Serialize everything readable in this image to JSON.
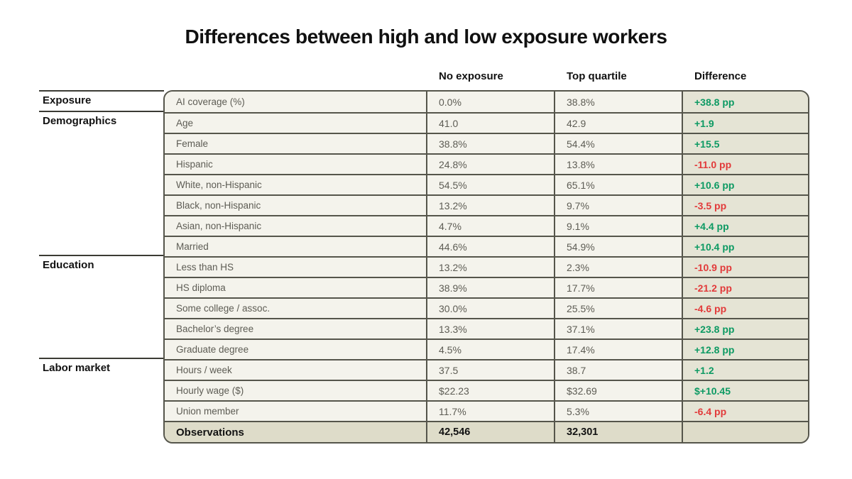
{
  "title": "Differences between high and low exposure workers",
  "columns": {
    "no_exposure": "No exposure",
    "top_quartile": "Top quartile",
    "difference": "Difference"
  },
  "colors": {
    "positive": "#0d9a63",
    "negative": "#e23a3a",
    "cell_background": "#f4f3ec",
    "difference_background": "#e5e4d5",
    "totals_background": "#dedcc9",
    "border": "#55554b"
  },
  "chart_data": {
    "type": "table",
    "title": "Differences between high and low exposure workers",
    "column_headers": [
      "No exposure",
      "Top quartile",
      "Difference"
    ],
    "groups": [
      {
        "label": "Exposure",
        "row_count": 1
      },
      {
        "label": "Demographics",
        "row_count": 7
      },
      {
        "label": "Education",
        "row_count": 5
      },
      {
        "label": "Labor market",
        "row_count": 4
      }
    ],
    "rows": [
      {
        "group": "Exposure",
        "label": "AI coverage (%)",
        "no_exposure": "0.0%",
        "top_quartile": "38.8%",
        "difference": "+38.8 pp",
        "trend": "positive",
        "is_total": false
      },
      {
        "group": "Demographics",
        "label": "Age",
        "no_exposure": "41.0",
        "top_quartile": "42.9",
        "difference": "+1.9",
        "trend": "positive",
        "is_total": false
      },
      {
        "group": "Demographics",
        "label": "Female",
        "no_exposure": "38.8%",
        "top_quartile": "54.4%",
        "difference": "+15.5",
        "trend": "positive",
        "is_total": false
      },
      {
        "group": "Demographics",
        "label": "Hispanic",
        "no_exposure": "24.8%",
        "top_quartile": "13.8%",
        "difference": "-11.0 pp",
        "trend": "negative",
        "is_total": false
      },
      {
        "group": "Demographics",
        "label": "White, non-Hispanic",
        "no_exposure": "54.5%",
        "top_quartile": "65.1%",
        "difference": "+10.6 pp",
        "trend": "positive",
        "is_total": false
      },
      {
        "group": "Demographics",
        "label": "Black, non-Hispanic",
        "no_exposure": "13.2%",
        "top_quartile": "9.7%",
        "difference": "-3.5 pp",
        "trend": "negative",
        "is_total": false
      },
      {
        "group": "Demographics",
        "label": "Asian, non-Hispanic",
        "no_exposure": "4.7%",
        "top_quartile": "9.1%",
        "difference": "+4.4 pp",
        "trend": "positive",
        "is_total": false
      },
      {
        "group": "Demographics",
        "label": "Married",
        "no_exposure": "44.6%",
        "top_quartile": "54.9%",
        "difference": "+10.4 pp",
        "trend": "positive",
        "is_total": false
      },
      {
        "group": "Education",
        "label": "Less than HS",
        "no_exposure": "13.2%",
        "top_quartile": "2.3%",
        "difference": "-10.9 pp",
        "trend": "negative",
        "is_total": false
      },
      {
        "group": "Education",
        "label": "HS diploma",
        "no_exposure": "38.9%",
        "top_quartile": "17.7%",
        "difference": "-21.2 pp",
        "trend": "negative",
        "is_total": false
      },
      {
        "group": "Education",
        "label": "Some college / assoc.",
        "no_exposure": "30.0%",
        "top_quartile": "25.5%",
        "difference": "-4.6 pp",
        "trend": "negative",
        "is_total": false
      },
      {
        "group": "Education",
        "label": "Bachelor’s degree",
        "no_exposure": "13.3%",
        "top_quartile": "37.1%",
        "difference": "+23.8 pp",
        "trend": "positive",
        "is_total": false
      },
      {
        "group": "Education",
        "label": "Graduate degree",
        "no_exposure": "4.5%",
        "top_quartile": "17.4%",
        "difference": "+12.8 pp",
        "trend": "positive",
        "is_total": false
      },
      {
        "group": "Labor market",
        "label": "Hours / week",
        "no_exposure": "37.5",
        "top_quartile": "38.7",
        "difference": "+1.2",
        "trend": "positive",
        "is_total": false
      },
      {
        "group": "Labor market",
        "label": "Hourly wage ($)",
        "no_exposure": "$22.23",
        "top_quartile": "$32.69",
        "difference": "$+10.45",
        "trend": "positive",
        "is_total": false
      },
      {
        "group": "Labor market",
        "label": "Union member",
        "no_exposure": "11.7%",
        "top_quartile": "5.3%",
        "difference": "-6.4 pp",
        "trend": "negative",
        "is_total": false
      },
      {
        "group": "Labor market",
        "label": "Observations",
        "no_exposure": "42,546",
        "top_quartile": "32,301",
        "difference": "",
        "trend": null,
        "is_total": true
      }
    ]
  }
}
